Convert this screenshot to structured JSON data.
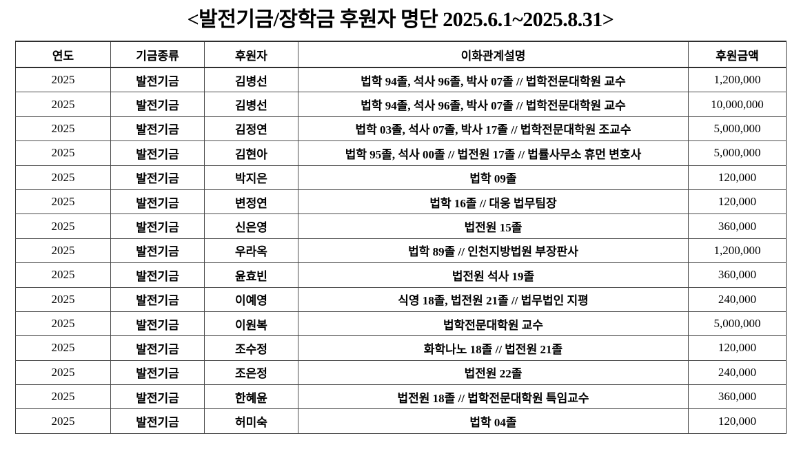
{
  "title": "<발전기금/장학금 후원자 명단 2025.6.1~2025.8.31>",
  "table": {
    "headers": [
      "연도",
      "기금종류",
      "후원자",
      "이화관계설명",
      "후원금액"
    ],
    "rows": [
      [
        "2025",
        "발전기금",
        "김병선",
        "법학 94졸, 석사 96졸, 박사 07졸 // 법학전문대학원 교수",
        "1,200,000"
      ],
      [
        "2025",
        "발전기금",
        "김병선",
        "법학 94졸, 석사 96졸, 박사 07졸 // 법학전문대학원 교수",
        "10,000,000"
      ],
      [
        "2025",
        "발전기금",
        "김정연",
        "법학 03졸, 석사 07졸, 박사 17졸 // 법학전문대학원 조교수",
        "5,000,000"
      ],
      [
        "2025",
        "발전기금",
        "김현아",
        "법학 95졸, 석사 00졸 // 법전원 17졸 // 법률사무소 휴먼 변호사",
        "5,000,000"
      ],
      [
        "2025",
        "발전기금",
        "박지은",
        "법학 09졸",
        "120,000"
      ],
      [
        "2025",
        "발전기금",
        "변정연",
        "법학 16졸 // 대웅 법무팀장",
        "120,000"
      ],
      [
        "2025",
        "발전기금",
        "신은영",
        "법전원 15졸",
        "360,000"
      ],
      [
        "2025",
        "발전기금",
        "우라옥",
        "법학 89졸 // 인천지방법원 부장판사",
        "1,200,000"
      ],
      [
        "2025",
        "발전기금",
        "윤효빈",
        "법전원 석사 19졸",
        "360,000"
      ],
      [
        "2025",
        "발전기금",
        "이예영",
        "식영 18졸, 법전원 21졸 // 법무법인 지평",
        "240,000"
      ],
      [
        "2025",
        "발전기금",
        "이원복",
        "법학전문대학원 교수",
        "5,000,000"
      ],
      [
        "2025",
        "발전기금",
        "조수정",
        "화학나노 18졸 // 법전원 21졸",
        "120,000"
      ],
      [
        "2025",
        "발전기금",
        "조은정",
        "법전원 22졸",
        "240,000"
      ],
      [
        "2025",
        "발전기금",
        "한혜윤",
        "법전원 18졸 // 법학전문대학원 특임교수",
        "360,000"
      ],
      [
        "2025",
        "발전기금",
        "허미숙",
        "법학 04졸",
        "120,000"
      ]
    ]
  }
}
